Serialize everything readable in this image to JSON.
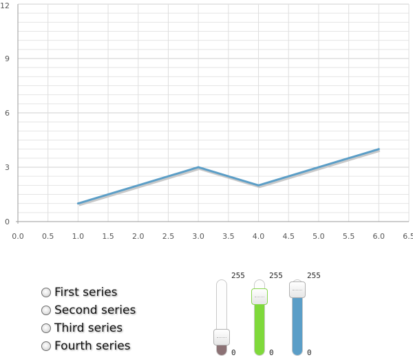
{
  "chart_data": {
    "type": "line",
    "x": [
      1.0,
      3.0,
      4.0,
      6.0
    ],
    "y": [
      1,
      3,
      2,
      4
    ],
    "xlim": [
      0,
      6.5
    ],
    "ylim": [
      0,
      12
    ],
    "x_ticks": [
      "0.0",
      "0.5",
      "1.0",
      "1.5",
      "2.0",
      "2.5",
      "3.0",
      "3.5",
      "4.0",
      "4.5",
      "5.0",
      "5.5",
      "6.0",
      "6.5"
    ],
    "y_ticks": [
      "0",
      "3",
      "6",
      "9",
      "12"
    ],
    "grid": true,
    "line_color": "#5b9ec7",
    "title": "",
    "xlabel": "",
    "ylabel": ""
  },
  "series_selector": {
    "items": [
      {
        "label": "First series"
      },
      {
        "label": "Second series"
      },
      {
        "label": "Third series"
      },
      {
        "label": "Fourth series"
      }
    ]
  },
  "color_sliders": {
    "channels": [
      {
        "channel": "red",
        "min": "0",
        "max": "255",
        "value": 0.17,
        "fill_color": "#8c7275",
        "border_color": "#b0b0b0"
      },
      {
        "channel": "green",
        "min": "0",
        "max": "255",
        "value": 0.85,
        "fill_color": "#7fd93b",
        "border_color": "#86d64a"
      },
      {
        "channel": "blue",
        "min": "0",
        "max": "255",
        "value": 0.96,
        "fill_color": "#5b9ec7",
        "border_color": "#b0b0b0"
      }
    ]
  }
}
